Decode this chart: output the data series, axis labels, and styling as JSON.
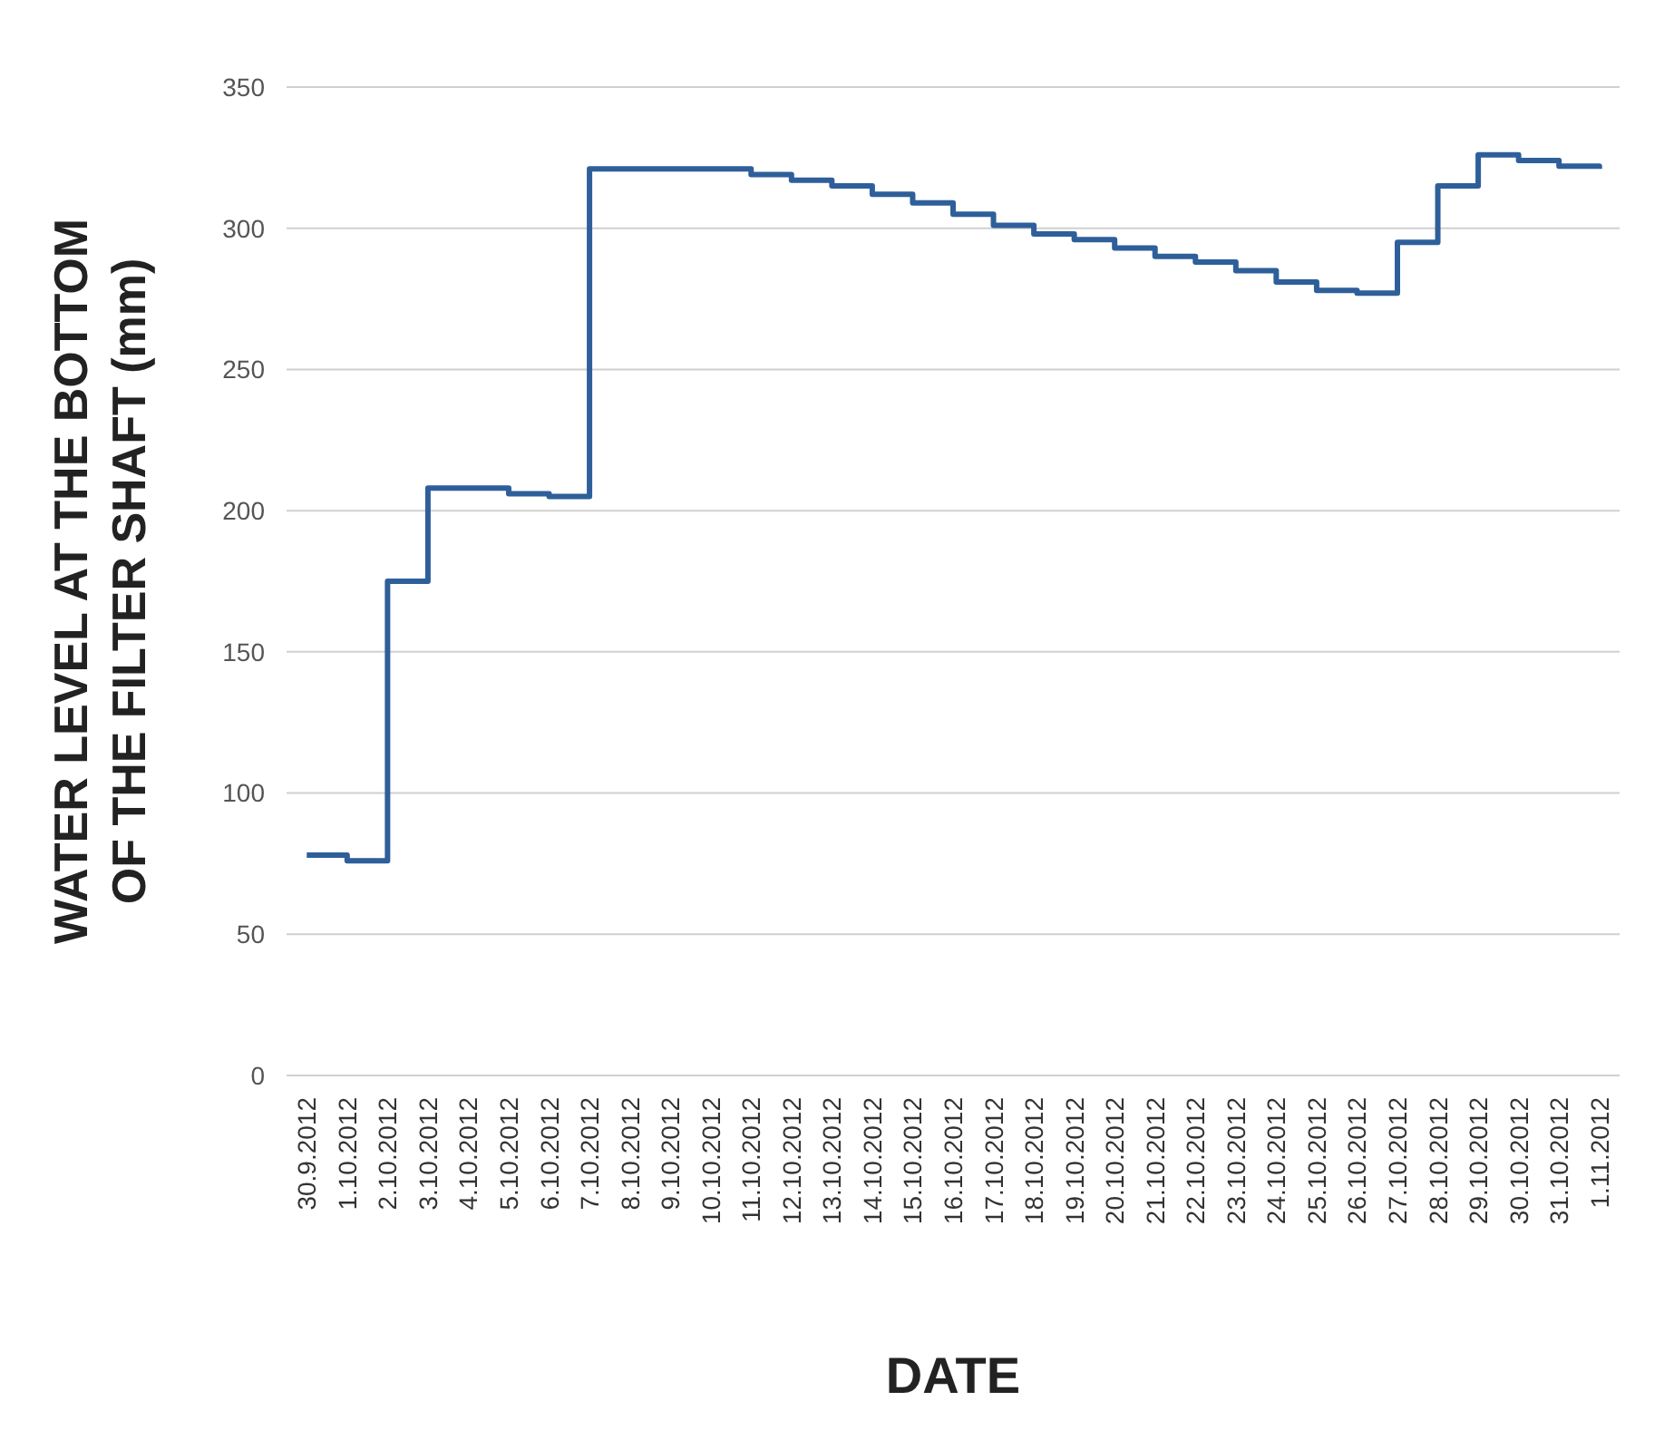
{
  "chart_data": {
    "type": "step",
    "xlabel": "DATE",
    "ylabel": "WATER LEVEL AT THE BOTTOM OF THE FILTER SHAFT (mm)",
    "categories": [
      "30.9.2012",
      "1.10.2012",
      "2.10.2012",
      "3.10.2012",
      "4.10.2012",
      "5.10.2012",
      "6.10.2012",
      "7.10.2012",
      "8.10.2012",
      "9.10.2012",
      "10.10.2012",
      "11.10.2012",
      "12.10.2012",
      "13.10.2012",
      "14.10.2012",
      "15.10.2012",
      "16.10.2012",
      "17.10.2012",
      "18.10.2012",
      "19.10.2012",
      "20.10.2012",
      "21.10.2012",
      "22.10.2012",
      "23.10.2012",
      "24.10.2012",
      "25.10.2012",
      "26.10.2012",
      "27.10.2012",
      "28.10.2012",
      "29.10.2012",
      "30.10.2012",
      "31.10.2012",
      "1.11.2012"
    ],
    "series": [
      {
        "color": "#2e5f9a",
        "values": [
          78,
          76,
          175,
          208,
          208,
          206,
          205,
          321,
          321,
          321,
          321,
          319,
          317,
          315,
          312,
          309,
          305,
          301,
          298,
          296,
          293,
          290,
          288,
          285,
          281,
          278,
          277,
          295,
          315,
          326,
          324,
          322,
          321
        ]
      }
    ],
    "ylim": [
      0,
      350
    ],
    "yticks": [
      0,
      50,
      100,
      150,
      200,
      250,
      300,
      350
    ],
    "grid": "y",
    "marker": "none",
    "line_style": "solid"
  }
}
